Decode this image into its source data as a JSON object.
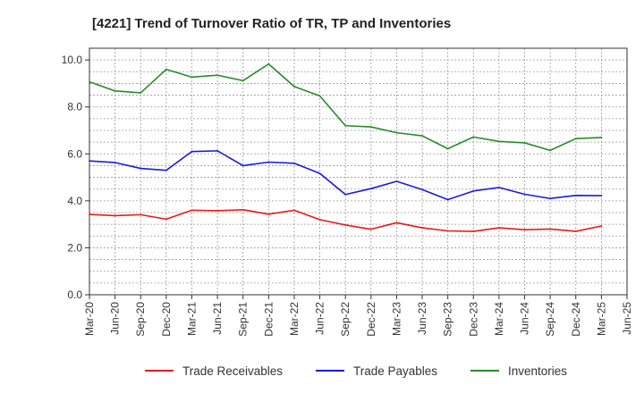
{
  "chart_data": {
    "type": "line",
    "title": "[4221]  Trend of Turnover Ratio of TR, TP and Inventories",
    "xlabel": "",
    "ylabel": "",
    "ylim": [
      0,
      10.5
    ],
    "yticks": [
      "0.0",
      "2.0",
      "4.0",
      "6.0",
      "8.0",
      "10.0"
    ],
    "ytick_values": [
      0,
      2,
      4,
      6,
      8,
      10
    ],
    "xtick_labels": [
      "Mar-20",
      "Jun-20",
      "Sep-20",
      "Dec-20",
      "Mar-21",
      "Jun-21",
      "Sep-21",
      "Dec-21",
      "Mar-22",
      "Jun-22",
      "Sep-22",
      "Dec-22",
      "Mar-23",
      "Jun-23",
      "Sep-23",
      "Dec-23",
      "Mar-24",
      "Jun-24",
      "Sep-24",
      "Dec-24",
      "Mar-25",
      "Jun-25"
    ],
    "categories": [
      "Mar-20",
      "Jun-20",
      "Sep-20",
      "Dec-20",
      "Mar-21",
      "Jun-21",
      "Sep-21",
      "Dec-21",
      "Mar-22",
      "Jun-22",
      "Sep-22",
      "Dec-22",
      "Mar-23",
      "Jun-23",
      "Sep-23",
      "Dec-23",
      "Mar-24",
      "Jun-24",
      "Sep-24",
      "Dec-24",
      "Mar-25"
    ],
    "grid": true,
    "legend_position": "bottom",
    "series": [
      {
        "name": "Trade Receivables",
        "color": "#e8191a",
        "values": [
          3.42,
          3.37,
          3.41,
          3.22,
          3.6,
          3.58,
          3.62,
          3.43,
          3.6,
          3.2,
          2.97,
          2.79,
          3.07,
          2.85,
          2.72,
          2.7,
          2.85,
          2.77,
          2.8,
          2.7,
          2.93
        ]
      },
      {
        "name": "Trade Payables",
        "color": "#1a1ae0",
        "values": [
          5.7,
          5.63,
          5.38,
          5.3,
          6.1,
          6.13,
          5.5,
          5.65,
          5.6,
          5.17,
          4.27,
          4.52,
          4.83,
          4.48,
          4.05,
          4.42,
          4.57,
          4.28,
          4.1,
          4.23,
          4.22
        ]
      },
      {
        "name": "Inventories",
        "color": "#2a8a2a",
        "values": [
          9.07,
          8.68,
          8.6,
          9.6,
          9.27,
          9.35,
          9.12,
          9.83,
          8.87,
          8.47,
          7.2,
          7.15,
          6.9,
          6.77,
          6.22,
          6.72,
          6.53,
          6.47,
          6.15,
          6.65,
          6.7
        ]
      }
    ]
  }
}
